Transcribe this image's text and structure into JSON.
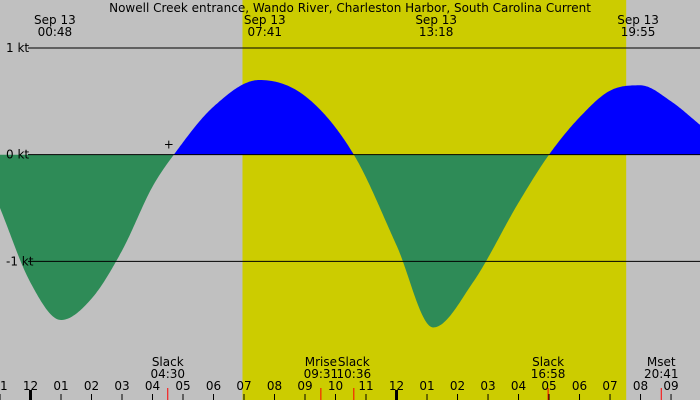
{
  "chart_data": {
    "type": "area",
    "title": "Nowell Creek entrance, Wando River, Charleston Harbor, South Carolina Current",
    "unit": "kt",
    "x_range_hours": [
      -13.0,
      9.95
    ],
    "y_range": [
      -2.3,
      1.45
    ],
    "y_ticks": [
      {
        "value": 1,
        "label": "1 kt"
      },
      {
        "value": 0,
        "label": "0 kt"
      },
      {
        "value": -1,
        "label": "-1 kt"
      }
    ],
    "x_ticks": [
      {
        "hour": -13,
        "label": "11"
      },
      {
        "hour": -12,
        "label": "12"
      },
      {
        "hour": -11,
        "label": "01"
      },
      {
        "hour": -10,
        "label": "02"
      },
      {
        "hour": -9,
        "label": "03"
      },
      {
        "hour": -8,
        "label": "04"
      },
      {
        "hour": -7,
        "label": "05"
      },
      {
        "hour": -6,
        "label": "06"
      },
      {
        "hour": -5,
        "label": "07"
      },
      {
        "hour": -4,
        "label": "08"
      },
      {
        "hour": -3,
        "label": "09"
      },
      {
        "hour": -2,
        "label": "10"
      },
      {
        "hour": -1,
        "label": "11"
      },
      {
        "hour": 0,
        "label": "12"
      },
      {
        "hour": 1,
        "label": "01"
      },
      {
        "hour": 2,
        "label": "02"
      },
      {
        "hour": 3,
        "label": "03"
      },
      {
        "hour": 4,
        "label": "04"
      },
      {
        "hour": 5,
        "label": "05"
      },
      {
        "hour": 6,
        "label": "06"
      },
      {
        "hour": 7,
        "label": "07"
      },
      {
        "hour": 8,
        "label": "08"
      },
      {
        "hour": 9,
        "label": "09"
      }
    ],
    "daylight_hours": [
      -5.05,
      7.53
    ],
    "top_labels": [
      {
        "hour": -11.2,
        "date": "Sep 13",
        "time": "00:48"
      },
      {
        "hour": -4.32,
        "date": "Sep 13",
        "time": "07:41"
      },
      {
        "hour": 1.3,
        "date": "Sep 13",
        "time": "13:18"
      },
      {
        "hour": 7.92,
        "date": "Sep 13",
        "time": "19:55"
      }
    ],
    "events": [
      {
        "hour": -7.5,
        "name": "Slack",
        "time": "04:30"
      },
      {
        "hour": -2.48,
        "name": "Mrise",
        "time": "09:31"
      },
      {
        "hour": -1.4,
        "name": "Slack",
        "time": "10:36"
      },
      {
        "hour": 4.97,
        "name": "Slack",
        "time": "16:58"
      },
      {
        "hour": 8.68,
        "name": "Mset",
        "time": "20:41"
      }
    ],
    "curve_points": [
      {
        "hour": -13.0,
        "kt": -0.5
      },
      {
        "hour": -12.0,
        "kt": -1.2
      },
      {
        "hour": -11.0,
        "kt": -1.55
      },
      {
        "hour": -10.0,
        "kt": -1.35
      },
      {
        "hour": -9.0,
        "kt": -0.9
      },
      {
        "hour": -8.0,
        "kt": -0.3
      },
      {
        "hour": -7.3,
        "kt": 0.0
      },
      {
        "hour": -6.0,
        "kt": 0.45
      },
      {
        "hour": -4.5,
        "kt": 0.7
      },
      {
        "hour": -3.0,
        "kt": 0.55
      },
      {
        "hour": -1.4,
        "kt": 0.0
      },
      {
        "hour": 0.0,
        "kt": -0.85
      },
      {
        "hour": 1.2,
        "kt": -1.62
      },
      {
        "hour": 2.5,
        "kt": -1.2
      },
      {
        "hour": 4.0,
        "kt": -0.45
      },
      {
        "hour": 5.0,
        "kt": 0.0
      },
      {
        "hour": 6.0,
        "kt": 0.35
      },
      {
        "hour": 7.0,
        "kt": 0.6
      },
      {
        "hour": 8.0,
        "kt": 0.65
      },
      {
        "hour": 9.0,
        "kt": 0.5
      },
      {
        "hour": 9.95,
        "kt": 0.28
      }
    ],
    "colors": {
      "background": "#c0c0c0",
      "daylight": "#cccc00",
      "flood": "#0000ff",
      "ebb": "#2e8b57",
      "axis": "#000000",
      "event_tick": "#ff0000"
    }
  }
}
